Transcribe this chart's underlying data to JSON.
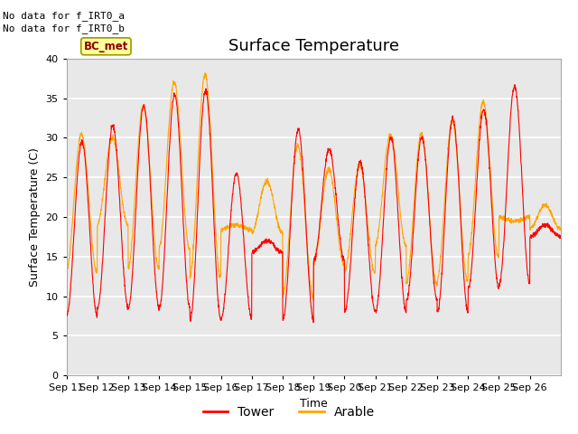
{
  "title": "Surface Temperature",
  "ylabel": "Surface Temperature (C)",
  "xlabel": "Time",
  "ylim": [
    0,
    40
  ],
  "yticks": [
    0,
    5,
    10,
    15,
    20,
    25,
    30,
    35,
    40
  ],
  "xtick_labels": [
    "Sep 11",
    "Sep 12",
    "Sep 13",
    "Sep 14",
    "Sep 15",
    "Sep 16",
    "Sep 17",
    "Sep 18",
    "Sep 19",
    "Sep 20",
    "Sep 21",
    "Sep 22",
    "Sep 23",
    "Sep 24",
    "Sep 25",
    "Sep 26"
  ],
  "text_no_data": [
    "No data for f_IRT0_a",
    "No data for f_IRT0_b"
  ],
  "legend_label_bc": "BC_met",
  "legend_entries": [
    "Tower",
    "Arable"
  ],
  "tower_color": "#ff0000",
  "arable_color": "#ffa500",
  "bg_color": "#e8e8e8",
  "grid_color": "#ffffff",
  "title_fontsize": 13,
  "label_fontsize": 9,
  "tick_fontsize": 8,
  "daily_min_tower": [
    7.5,
    8.5,
    8.5,
    8.5,
    7.0,
    7.2,
    15.5,
    7.0,
    14.5,
    8.0,
    8.0,
    9.5,
    8.0,
    11.0,
    11.5,
    17.5
  ],
  "daily_max_tower": [
    29.5,
    31.5,
    34.0,
    35.5,
    36.0,
    25.5,
    17.0,
    31.0,
    28.5,
    27.0,
    30.0,
    30.0,
    32.5,
    33.5,
    36.5,
    19.0
  ],
  "daily_min_arable": [
    13.0,
    19.0,
    13.5,
    16.0,
    12.5,
    18.5,
    18.0,
    10.0,
    14.0,
    13.0,
    16.5,
    11.5,
    12.0,
    15.0,
    20.0,
    18.5
  ],
  "daily_max_arable": [
    30.5,
    30.0,
    34.0,
    37.0,
    38.0,
    19.0,
    24.5,
    29.0,
    26.0,
    26.5,
    30.5,
    30.5,
    32.0,
    34.5,
    19.5,
    21.5
  ]
}
